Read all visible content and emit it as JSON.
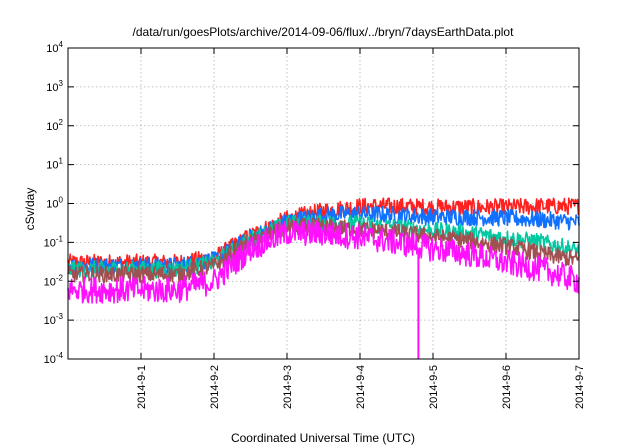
{
  "chart_data": {
    "type": "line",
    "title": "/data/run/goesPlots/archive/2014-09-06/flux/../bryn/7daysEarthData.plot",
    "xlabel": "Coordinated Universal Time (UTC)",
    "ylabel": "cSv/day",
    "yscale": "log",
    "ylim": [
      0.0001,
      10000
    ],
    "xlim": [
      "2014-08-31",
      "2014-09-07"
    ],
    "y_ticks": [
      {
        "base": "10",
        "exp": "-4",
        "value": 0.0001
      },
      {
        "base": "10",
        "exp": "-3",
        "value": 0.001
      },
      {
        "base": "10",
        "exp": "-2",
        "value": 0.01
      },
      {
        "base": "10",
        "exp": "-1",
        "value": 0.1
      },
      {
        "base": "10",
        "exp": "0",
        "value": 1
      },
      {
        "base": "10",
        "exp": "1",
        "value": 10
      },
      {
        "base": "10",
        "exp": "2",
        "value": 100
      },
      {
        "base": "10",
        "exp": "3",
        "value": 1000
      },
      {
        "base": "10",
        "exp": "4",
        "value": 10000
      }
    ],
    "x_ticks": [
      "2014-9-1",
      "2014-9-2",
      "2014-9-3",
      "2014-9-4",
      "2014-9-5",
      "2014-9-6",
      "2014-9-7"
    ],
    "grid": true,
    "x": [
      "2014-08-31",
      "2014-09-01",
      "2014-09-01T12:00",
      "2014-09-02",
      "2014-09-02T12:00",
      "2014-09-03",
      "2014-09-03T12:00",
      "2014-09-04",
      "2014-09-04T12:00",
      "2014-09-05",
      "2014-09-05T12:00",
      "2014-09-06",
      "2014-09-06T12:00",
      "2014-09-07"
    ],
    "series": [
      {
        "color": "#ff2020",
        "values": [
          0.03,
          0.03,
          0.03,
          0.04,
          0.15,
          0.4,
          0.65,
          0.85,
          0.85,
          0.8,
          0.8,
          0.8,
          0.85,
          0.85
        ]
      },
      {
        "color": "#1070ff",
        "values": [
          0.025,
          0.025,
          0.025,
          0.035,
          0.13,
          0.35,
          0.5,
          0.55,
          0.5,
          0.45,
          0.45,
          0.42,
          0.38,
          0.33
        ]
      },
      {
        "color": "#00c8a0",
        "values": [
          0.02,
          0.02,
          0.02,
          0.03,
          0.12,
          0.3,
          0.32,
          0.3,
          0.25,
          0.2,
          0.17,
          0.13,
          0.1,
          0.06
        ]
      },
      {
        "color": "#a05050",
        "values": [
          0.015,
          0.015,
          0.015,
          0.025,
          0.1,
          0.25,
          0.25,
          0.22,
          0.18,
          0.14,
          0.11,
          0.08,
          0.05,
          0.035
        ]
      },
      {
        "color": "#ff10ff",
        "values": [
          0.006,
          0.006,
          0.006,
          0.01,
          0.07,
          0.18,
          0.17,
          0.14,
          0.1,
          0.07,
          0.05,
          0.03,
          0.02,
          0.01
        ]
      }
    ],
    "dropout": {
      "series": 4,
      "x": "2014-09-04T19:12",
      "y": 0.0001
    }
  }
}
